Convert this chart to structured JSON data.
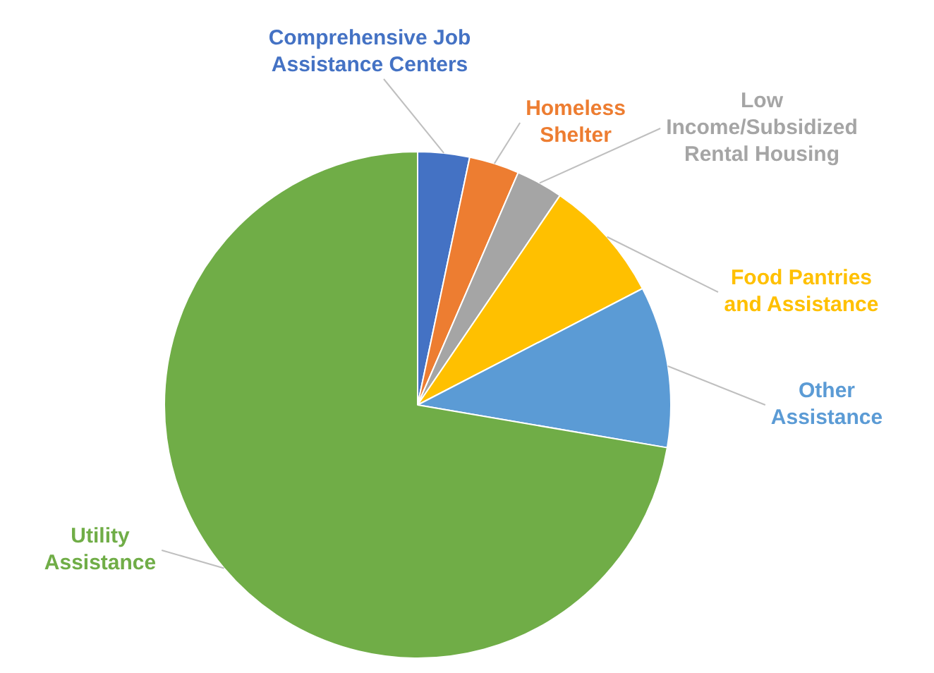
{
  "chart_data": {
    "type": "pie",
    "categories": [
      "Comprehensive Job Assistance Centers",
      "Homeless Shelter",
      "Low Income/Subsidized Rental Housing",
      "Food Pantries and Assistance",
      "Other Assistance",
      "Utility Assistance"
    ],
    "values": [
      3.3,
      3.2,
      3,
      7.9,
      10.3,
      72.3
    ],
    "colors": [
      "#4472c4",
      "#ed7d31",
      "#a5a5a5",
      "#ffc000",
      "#5b9bd5",
      "#70ad47"
    ],
    "legend": false
  }
}
